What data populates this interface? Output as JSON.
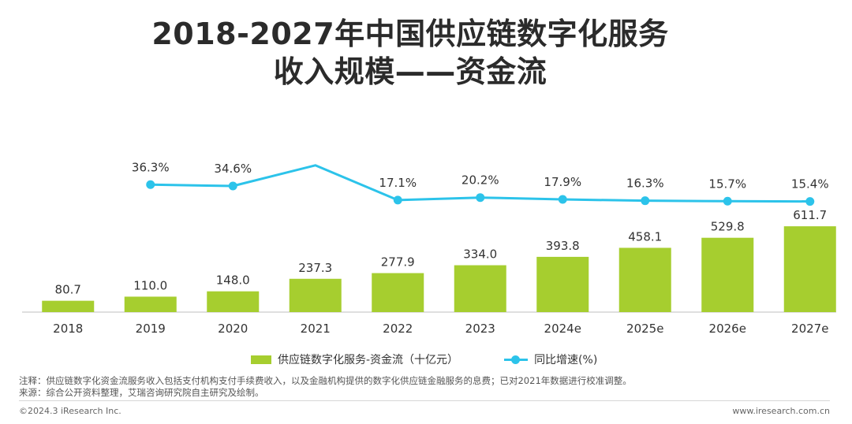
{
  "title_line1": "2018-2027年中国供应链数字化服务",
  "title_line2": "收入规模——资金流",
  "chart_data": {
    "type": "bar",
    "categories": [
      "2018",
      "2019",
      "2020",
      "2021",
      "2022",
      "2023",
      "2024e",
      "2025e",
      "2026e",
      "2027e"
    ],
    "series": [
      {
        "name": "供应链数字化服务-资金流（十亿元）",
        "type": "bar",
        "color": "#a6ce2f",
        "values": [
          80.7,
          110.0,
          148.0,
          237.3,
          277.9,
          334.0,
          393.8,
          458.1,
          529.8,
          611.7
        ],
        "labels": [
          "80.7",
          "110.0",
          "148.0",
          "237.3",
          "277.9",
          "334.0",
          "393.8",
          "458.1",
          "529.8",
          "611.7"
        ]
      },
      {
        "name": "同比增速(%)",
        "type": "line",
        "color": "#2cc3ea",
        "values": [
          null,
          36.3,
          34.6,
          60.3,
          17.1,
          20.2,
          17.9,
          16.3,
          15.7,
          15.4
        ],
        "labels": [
          "",
          "36.3%",
          "34.6%",
          "",
          "17.1%",
          "20.2%",
          "17.9%",
          "16.3%",
          "15.7%",
          "15.4%"
        ]
      }
    ],
    "legend_position": "bottom",
    "grid": false
  },
  "notes": {
    "line1": "注释：供应链数字化资金流服务收入包括支付机构支付手续费收入，以及金融机构提供的数字化供应链金融服务的息费；已对2021年数据进行校准调整。",
    "line2": "来源：综合公开资料整理，艾瑞咨询研究院自主研究及绘制。"
  },
  "footer": {
    "copyright": "©2024.3 iResearch Inc.",
    "website": "www.iresearch.com.cn"
  }
}
